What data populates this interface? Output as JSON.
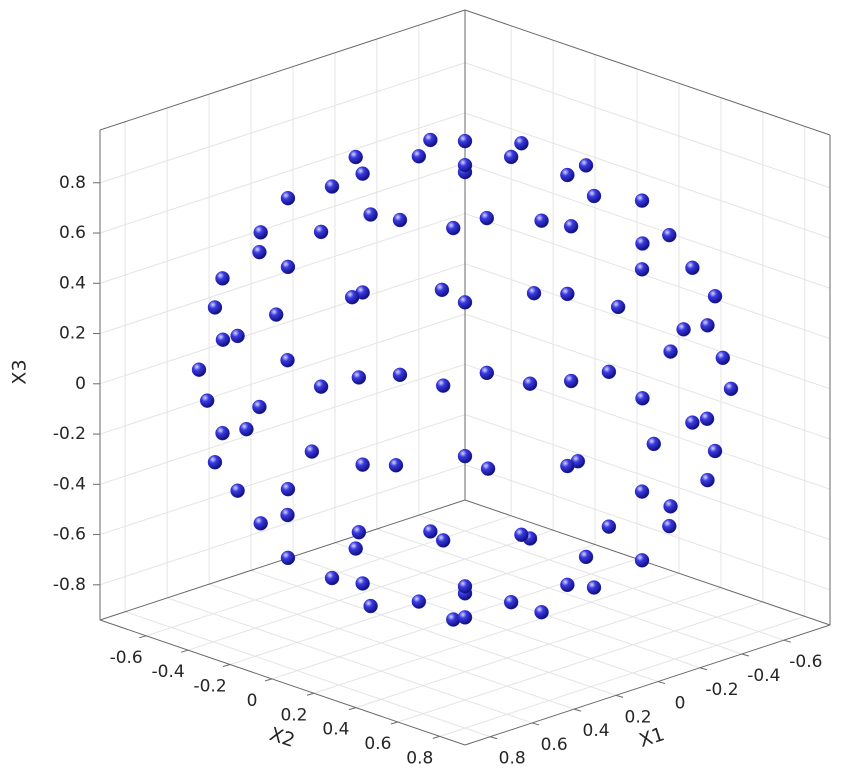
{
  "chart_data": {
    "type": "scatter3d",
    "xlabel": "X1",
    "ylabel": "X2",
    "zlabel": "X3",
    "color": "#2222cc",
    "grid": true,
    "xlim": [
      -0.82,
      0.92
    ],
    "ylim": [
      -0.82,
      0.92
    ],
    "zlim": [
      -0.94,
      1.01
    ],
    "xticks": [
      -0.6,
      -0.4,
      -0.2,
      0,
      0.2,
      0.4,
      0.6,
      0.8
    ],
    "yticks": [
      -0.6,
      -0.4,
      -0.2,
      0,
      0.2,
      0.4,
      0.6,
      0.8
    ],
    "zticks": [
      -0.8,
      -0.6,
      -0.4,
      -0.2,
      0,
      0.2,
      0.4,
      0.6,
      0.8
    ],
    "x": [
      0.11,
      -0.11,
      -0.11,
      0.11,
      0.45,
      0.345,
      0.078,
      -0.225,
      -0.423,
      -0.423,
      -0.225,
      0.078,
      0.345,
      0.666,
      0.487,
      0.178,
      -0.178,
      -0.487,
      -0.666,
      -0.666,
      -0.487,
      -0.178,
      0.178,
      0.487,
      0.666,
      0.846,
      0.795,
      0.648,
      0.423,
      0.147,
      -0.147,
      -0.423,
      -0.648,
      -0.795,
      -0.846,
      -0.795,
      -0.648,
      -0.423,
      -0.147,
      0.147,
      0.423,
      0.648,
      0.795,
      0.886,
      0.779,
      0.579,
      0.308,
      0,
      -0.308,
      -0.579,
      -0.779,
      -0.886,
      -0.886,
      -0.779,
      -0.579,
      -0.308,
      0,
      0.308,
      0.579,
      0.779,
      0.886,
      0.846,
      0.795,
      0.648,
      0.423,
      0.147,
      -0.147,
      -0.423,
      -0.648,
      -0.795,
      -0.846,
      -0.795,
      -0.648,
      -0.423,
      -0.147,
      0.147,
      0.423,
      0.648,
      0.795,
      0.666,
      0.487,
      0.178,
      -0.178,
      -0.487,
      -0.666,
      -0.666,
      -0.487,
      -0.178,
      0.178,
      0.487,
      0.666,
      0.45,
      0.345,
      0.078,
      -0.225,
      -0.423,
      -0.423,
      -0.225,
      0.078,
      0.345,
      0.11,
      -0.11,
      -0.11,
      0.11
    ],
    "y": [
      0.11,
      0.11,
      -0.11,
      -0.11,
      0,
      0.289,
      0.443,
      0.39,
      0.154,
      -0.154,
      -0.39,
      -0.443,
      -0.289,
      0.178,
      0.487,
      0.666,
      0.666,
      0.487,
      0.178,
      -0.178,
      -0.487,
      -0.666,
      -0.666,
      -0.487,
      -0.178,
      0,
      0.289,
      0.544,
      0.733,
      0.833,
      0.833,
      0.733,
      0.544,
      0.289,
      0,
      -0.289,
      -0.544,
      -0.733,
      -0.833,
      -0.833,
      -0.733,
      -0.544,
      -0.289,
      0.156,
      0.45,
      0.689,
      0.846,
      0.9,
      0.846,
      0.689,
      0.45,
      0.156,
      -0.156,
      -0.45,
      -0.689,
      -0.846,
      -0.9,
      -0.846,
      -0.689,
      -0.45,
      -0.156,
      0,
      0.289,
      0.544,
      0.733,
      0.833,
      0.833,
      0.733,
      0.544,
      0.289,
      0,
      -0.289,
      -0.544,
      -0.733,
      -0.833,
      -0.833,
      -0.733,
      -0.544,
      -0.289,
      0.178,
      0.487,
      0.666,
      0.666,
      0.487,
      0.178,
      -0.178,
      -0.487,
      -0.666,
      -0.666,
      -0.487,
      -0.178,
      0,
      0.289,
      0.443,
      0.39,
      0.154,
      -0.154,
      -0.39,
      -0.443,
      -0.289,
      0.11,
      0.11,
      -0.11,
      -0.11
    ],
    "z": [
      0.886,
      0.886,
      0.886,
      0.886,
      0.779,
      0.779,
      0.779,
      0.779,
      0.779,
      0.779,
      0.779,
      0.779,
      0.779,
      0.579,
      0.579,
      0.579,
      0.579,
      0.579,
      0.579,
      0.579,
      0.579,
      0.579,
      0.579,
      0.579,
      0.579,
      0.308,
      0.308,
      0.308,
      0.308,
      0.308,
      0.308,
      0.308,
      0.308,
      0.308,
      0.308,
      0.308,
      0.308,
      0.308,
      0.308,
      0.308,
      0.308,
      0.308,
      0.308,
      0,
      0,
      0,
      0,
      0,
      0,
      0,
      0,
      0,
      0,
      0,
      0,
      0,
      0,
      0,
      0,
      0,
      0,
      -0.308,
      -0.308,
      -0.308,
      -0.308,
      -0.308,
      -0.308,
      -0.308,
      -0.308,
      -0.308,
      -0.308,
      -0.308,
      -0.308,
      -0.308,
      -0.308,
      -0.308,
      -0.308,
      -0.308,
      -0.308,
      -0.579,
      -0.579,
      -0.579,
      -0.579,
      -0.579,
      -0.579,
      -0.579,
      -0.579,
      -0.579,
      -0.579,
      -0.579,
      -0.579,
      -0.779,
      -0.779,
      -0.779,
      -0.779,
      -0.779,
      -0.779,
      -0.779,
      -0.779,
      -0.779,
      -0.886,
      -0.886,
      -0.886,
      -0.886
    ]
  }
}
